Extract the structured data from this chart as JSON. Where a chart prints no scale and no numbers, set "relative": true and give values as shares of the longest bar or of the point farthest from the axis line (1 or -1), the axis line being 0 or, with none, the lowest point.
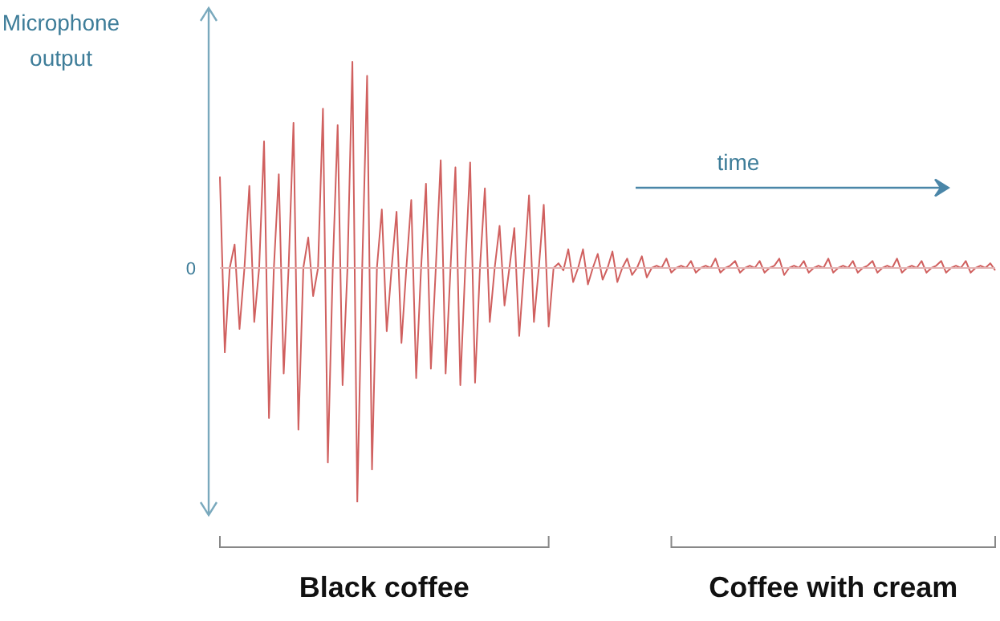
{
  "chart_data": {
    "type": "line",
    "relative": true,
    "ylabel": "Microphone output",
    "ref_lines": [
      {
        "axis": "y",
        "value": 0,
        "label": "0",
        "color": "#e3b3b3"
      }
    ],
    "annotations": [
      null,
      "time",
      "Black coffee",
      "Coffee with cream"
    ],
    "categories": [
      null,
      null,
      null,
      null,
      null,
      null,
      null,
      null,
      null,
      null,
      null,
      null,
      null,
      null,
      null,
      null,
      null,
      null,
      null,
      null,
      null,
      null,
      null,
      null,
      null,
      null,
      null,
      null,
      null,
      null,
      null,
      null,
      null,
      null,
      null,
      null,
      null,
      null,
      null,
      null,
      null,
      null,
      null,
      null,
      null,
      null,
      null,
      null,
      null,
      null,
      null,
      null,
      null,
      null,
      null,
      null,
      null,
      null,
      null,
      null,
      null,
      null,
      null,
      null,
      null,
      null,
      null,
      null,
      null,
      null,
      null,
      null,
      null,
      null,
      null,
      null,
      null,
      null,
      null,
      null,
      null,
      null,
      null,
      null,
      null,
      null,
      null,
      null,
      null,
      null,
      null,
      null,
      null,
      null,
      null,
      null,
      null,
      null,
      null,
      null,
      null,
      null,
      null,
      null,
      null,
      null,
      null,
      null,
      null,
      null,
      null,
      null,
      null,
      null,
      null,
      null,
      null,
      null,
      null,
      null,
      null,
      null,
      null,
      null,
      null,
      null,
      null,
      null,
      null,
      null,
      null,
      null,
      null,
      null,
      null,
      null,
      null,
      null,
      null,
      null,
      null,
      null,
      null,
      null,
      null,
      null,
      null,
      null,
      null,
      null,
      null,
      null,
      null,
      null,
      null,
      null,
      null,
      null,
      null
    ],
    "series": [
      {
        "color": "#d0605f",
        "values": [
          0.39,
          -0.36,
          0,
          0.1,
          -0.26,
          0,
          0.35,
          -0.23,
          0,
          0.54,
          -0.64,
          0,
          0.4,
          -0.45,
          0,
          0.62,
          -0.69,
          0,
          0.13,
          -0.12,
          0,
          0.68,
          -0.83,
          0,
          0.61,
          -0.5,
          0,
          0.88,
          -1,
          0,
          0.82,
          -0.86,
          0,
          0.25,
          -0.27,
          0,
          0.24,
          -0.32,
          0,
          0.29,
          -0.47,
          0,
          0.36,
          -0.43,
          0,
          0.46,
          -0.45,
          0,
          0.43,
          -0.5,
          0,
          0.45,
          -0.49,
          0,
          0.34,
          -0.23,
          0,
          0.18,
          -0.16,
          0,
          0.17,
          -0.29,
          0,
          0.31,
          -0.23,
          0,
          0.27,
          -0.25,
          0,
          0.02,
          -0.01,
          0.08,
          -0.06,
          0,
          0.08,
          -0.07,
          0,
          0.06,
          -0.05,
          0,
          0.07,
          -0.06,
          0,
          0.04,
          -0.03,
          0,
          0.05,
          -0.04,
          0,
          0.01,
          0,
          0.04,
          -0.02,
          0,
          0.01,
          0,
          0.03,
          -0.02,
          0,
          0.01,
          0,
          0.04,
          -0.02,
          0,
          0.01,
          0.03,
          -0.02,
          0,
          0.01,
          0,
          0.03,
          -0.02,
          0,
          0.01,
          0.04,
          -0.03,
          0,
          0.01,
          0,
          0.03,
          -0.02,
          0,
          0.01,
          0,
          0.04,
          -0.02,
          0,
          0.01,
          0,
          0.03,
          -0.02,
          0,
          0.01,
          0.03,
          -0.02,
          0,
          0.01,
          0,
          0.04,
          -0.02,
          0,
          0.01,
          0,
          0.03,
          -0.02,
          0,
          0.01,
          0.03,
          -0.02,
          0,
          0.01,
          0,
          0.03,
          -0.02,
          0,
          0.01,
          0,
          0.02,
          -0.01
        ]
      }
    ]
  }
}
